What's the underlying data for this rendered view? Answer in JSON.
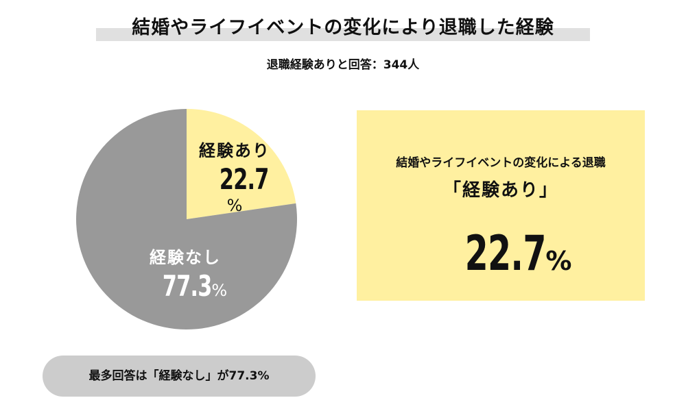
{
  "title": "結婚やライフイベントの変化により退職した経験",
  "subtitle": "退職経験ありと回答：344人",
  "colors": {
    "yes": "#fff0a0",
    "no": "#999999",
    "title_bar": "#e0e0e0",
    "summary_pill": "#cccccc"
  },
  "chart_data": {
    "type": "pie",
    "title": "結婚やライフイベントの変化により退職した経験",
    "subtitle": "退職経験ありと回答：344人",
    "slices": [
      {
        "label": "経験あり",
        "value": 22.7,
        "value_text": "22.7",
        "unit": "%",
        "color": "#fff0a0"
      },
      {
        "label": "経験なし",
        "value": 77.3,
        "value_text": "77.3",
        "unit": "%",
        "color": "#999999"
      }
    ]
  },
  "callout": {
    "line1": "結婚やライフイベントの変化による退職",
    "line2": "「経験あり」",
    "value": "22.7",
    "unit": "%"
  },
  "summary": "最多回答は「経験なし」が77.3%"
}
